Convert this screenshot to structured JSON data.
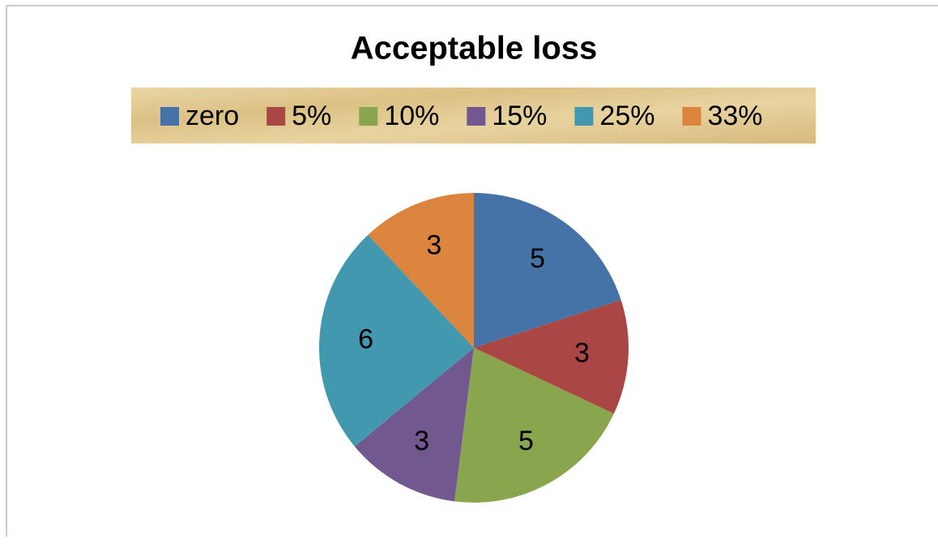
{
  "chart_data": {
    "type": "pie",
    "title": "Acceptable loss",
    "categories": [
      "zero",
      "5%",
      "10%",
      "15%",
      "25%",
      "33%"
    ],
    "values": [
      5,
      3,
      5,
      3,
      6,
      3
    ],
    "colors": [
      "#4572a7",
      "#aa4643",
      "#89a54e",
      "#71588f",
      "#4198af",
      "#db843d"
    ],
    "legend": "top"
  }
}
